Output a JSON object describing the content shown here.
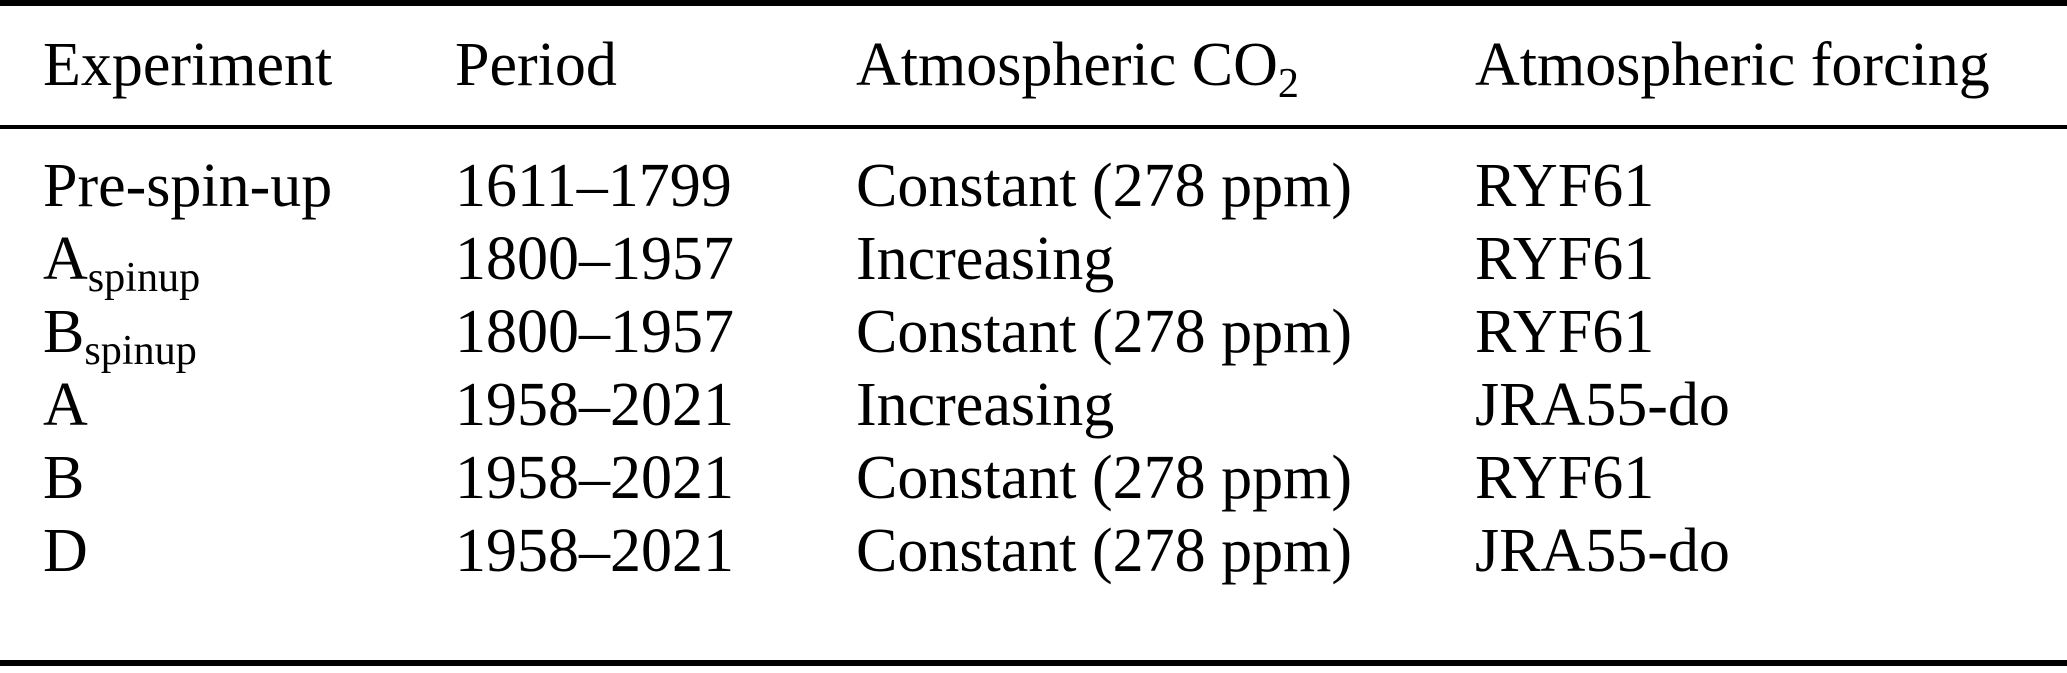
{
  "table": {
    "title": "Experiment overview table",
    "colors": {
      "background": "#ffffff",
      "text": "#000000",
      "rule": "#000000"
    },
    "columns": [
      {
        "label": "Experiment",
        "sub": ""
      },
      {
        "label": "Period",
        "sub": ""
      },
      {
        "label": "Atmospheric CO",
        "sub": "2"
      },
      {
        "label": "Atmospheric forcing",
        "sub": ""
      }
    ],
    "rows": [
      {
        "experiment": "Pre-spin-up",
        "experiment_sub": "",
        "period": "1611–1799",
        "co2": "Constant (278 ppm)",
        "forcing": "RYF61"
      },
      {
        "experiment": "A",
        "experiment_sub": "spinup",
        "period": "1800–1957",
        "co2": "Increasing",
        "forcing": "RYF61"
      },
      {
        "experiment": "B",
        "experiment_sub": "spinup",
        "period": "1800–1957",
        "co2": "Constant (278 ppm)",
        "forcing": "RYF61"
      },
      {
        "experiment": "A",
        "experiment_sub": "",
        "period": "1958–2021",
        "co2": "Increasing",
        "forcing": "JRA55-do"
      },
      {
        "experiment": "B",
        "experiment_sub": "",
        "period": "1958–2021",
        "co2": "Constant (278 ppm)",
        "forcing": "RYF61"
      },
      {
        "experiment": "D",
        "experiment_sub": "",
        "period": "1958–2021",
        "co2": "Constant (278 ppm)",
        "forcing": "JRA55-do"
      }
    ]
  }
}
